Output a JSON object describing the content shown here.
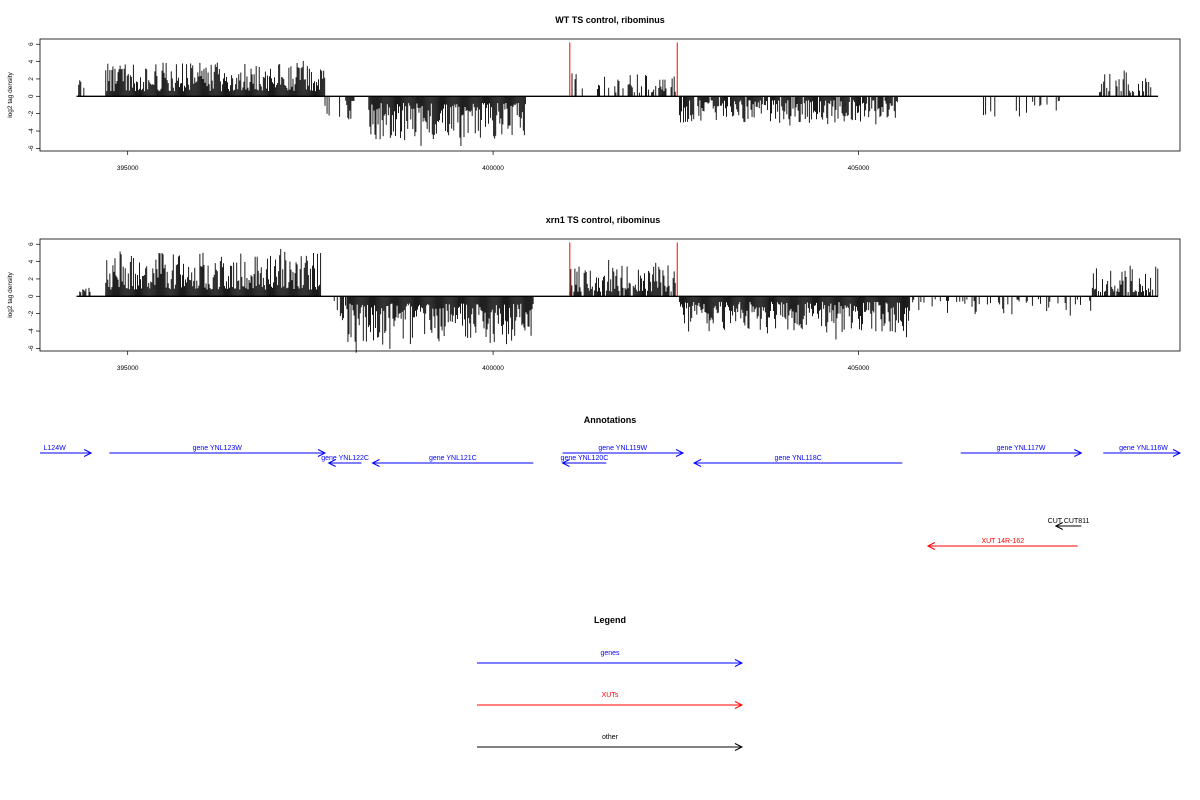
{
  "chart_data": [
    {
      "type": "bar",
      "title": "WT TS control, ribominus",
      "ylabel": "log2 tag density",
      "xlim": [
        393800,
        409400
      ],
      "ylim": [
        -6.3,
        6.6
      ],
      "yticks": [
        "6",
        "4",
        "2",
        "0",
        "-2",
        "-4",
        "-6"
      ],
      "xticks": [
        {
          "value": 395000,
          "label": "395000"
        },
        {
          "value": 400000,
          "label": "400000"
        },
        {
          "value": 405000,
          "label": "405000"
        }
      ],
      "baseline": {
        "from": 394300,
        "to": 409100
      },
      "marker_color": "#ff0000",
      "markers": [
        401050,
        402520
      ],
      "marker_height": 6.2,
      "regions": [
        {
          "from": 394330,
          "to": 394420,
          "sign": 1,
          "max": 2.4,
          "density": 0.6
        },
        {
          "from": 394700,
          "to": 397700,
          "sign": 1,
          "max": 4.6,
          "density": 1.0
        },
        {
          "from": 397700,
          "to": 397800,
          "sign": -1,
          "max": 2.8,
          "density": 0.5
        },
        {
          "from": 397900,
          "to": 398100,
          "sign": -1,
          "max": 3.7,
          "density": 0.6
        },
        {
          "from": 398300,
          "to": 400450,
          "sign": -1,
          "max": 6.0,
          "density": 1.0
        },
        {
          "from": 401080,
          "to": 401250,
          "sign": 1,
          "max": 3.5,
          "density": 0.6
        },
        {
          "from": 401400,
          "to": 402500,
          "sign": 1,
          "max": 3.0,
          "density": 0.5
        },
        {
          "from": 402550,
          "to": 405550,
          "sign": -1,
          "max": 3.6,
          "density": 0.9
        },
        {
          "from": 406600,
          "to": 407800,
          "sign": -1,
          "max": 3.0,
          "density": 0.15
        },
        {
          "from": 408300,
          "to": 409050,
          "sign": 1,
          "max": 3.3,
          "density": 0.5
        }
      ]
    },
    {
      "type": "bar",
      "title": "xrn1 TS control, ribominus",
      "ylabel": "log2 tag density",
      "xlim": [
        393800,
        409400
      ],
      "ylim": [
        -6.3,
        6.6
      ],
      "yticks": [
        "6",
        "4",
        "2",
        "0",
        "-2",
        "-4",
        "-6"
      ],
      "xticks": [
        {
          "value": 395000,
          "label": "395000"
        },
        {
          "value": 400000,
          "label": "400000"
        },
        {
          "value": 405000,
          "label": "405000"
        }
      ],
      "baseline": {
        "from": 394300,
        "to": 409100
      },
      "marker_color": "#ff0000",
      "markers": [
        401050,
        402520
      ],
      "marker_height": 6.2,
      "regions": [
        {
          "from": 394330,
          "to": 394500,
          "sign": 1,
          "max": 2.0,
          "density": 0.6
        },
        {
          "from": 394700,
          "to": 397650,
          "sign": 1,
          "max": 6.1,
          "density": 1.0
        },
        {
          "from": 397700,
          "to": 398000,
          "sign": -1,
          "max": 3.0,
          "density": 0.5
        },
        {
          "from": 398000,
          "to": 400550,
          "sign": -1,
          "max": 6.5,
          "density": 1.0
        },
        {
          "from": 401050,
          "to": 402500,
          "sign": 1,
          "max": 4.2,
          "density": 0.9
        },
        {
          "from": 402550,
          "to": 405700,
          "sign": -1,
          "max": 5.0,
          "density": 1.0
        },
        {
          "from": 405700,
          "to": 408200,
          "sign": -1,
          "max": 2.7,
          "density": 0.35
        },
        {
          "from": 408200,
          "to": 409100,
          "sign": 1,
          "max": 3.8,
          "density": 0.8
        }
      ]
    }
  ],
  "annotations": {
    "title": "Annotations",
    "xlim": [
      393800,
      409400
    ],
    "features": [
      {
        "label": "L124W",
        "from": 393800,
        "to": 394500,
        "row": 0,
        "dir": "right",
        "kind": "gene",
        "label_pos": 394000
      },
      {
        "label": "gene YNL123W",
        "from": 394750,
        "to": 397700,
        "row": 0,
        "dir": "right",
        "kind": "gene"
      },
      {
        "label": "gene YNL122C",
        "from": 397750,
        "to": 398200,
        "row": 1,
        "dir": "left",
        "kind": "gene"
      },
      {
        "label": "gene YNL121C",
        "from": 398350,
        "to": 400550,
        "row": 1,
        "dir": "left",
        "kind": "gene"
      },
      {
        "label": "gene YNL120C",
        "from": 400950,
        "to": 401550,
        "row": 1,
        "dir": "left",
        "kind": "gene"
      },
      {
        "label": "gene YNL119W",
        "from": 400950,
        "to": 402600,
        "row": 0,
        "dir": "right",
        "kind": "gene"
      },
      {
        "label": "gene YNL118C",
        "from": 402750,
        "to": 405600,
        "row": 1,
        "dir": "left",
        "kind": "gene"
      },
      {
        "label": "gene YNL117W",
        "from": 406400,
        "to": 408050,
        "row": 0,
        "dir": "right",
        "kind": "gene"
      },
      {
        "label": "gene YNL116W",
        "from": 408350,
        "to": 409400,
        "row": 0,
        "dir": "right",
        "kind": "gene",
        "label_pos": 408900
      },
      {
        "label": "CUT CUT811",
        "from": 407700,
        "to": 408050,
        "row": 3,
        "dir": "left",
        "kind": "other"
      },
      {
        "label": "XUT 14R-162",
        "from": 405950,
        "to": 408000,
        "row": 4,
        "dir": "left",
        "kind": "xut"
      }
    ]
  },
  "legend": {
    "title": "Legend",
    "items": [
      {
        "label": "genes",
        "kind": "gene"
      },
      {
        "label": "XUTs",
        "kind": "xut"
      },
      {
        "label": "other",
        "kind": "other"
      }
    ]
  },
  "colors": {
    "gene": "#0000ff",
    "xut": "#ff0000",
    "other": "#000000",
    "bars": "#000000",
    "frame": "#000000"
  }
}
